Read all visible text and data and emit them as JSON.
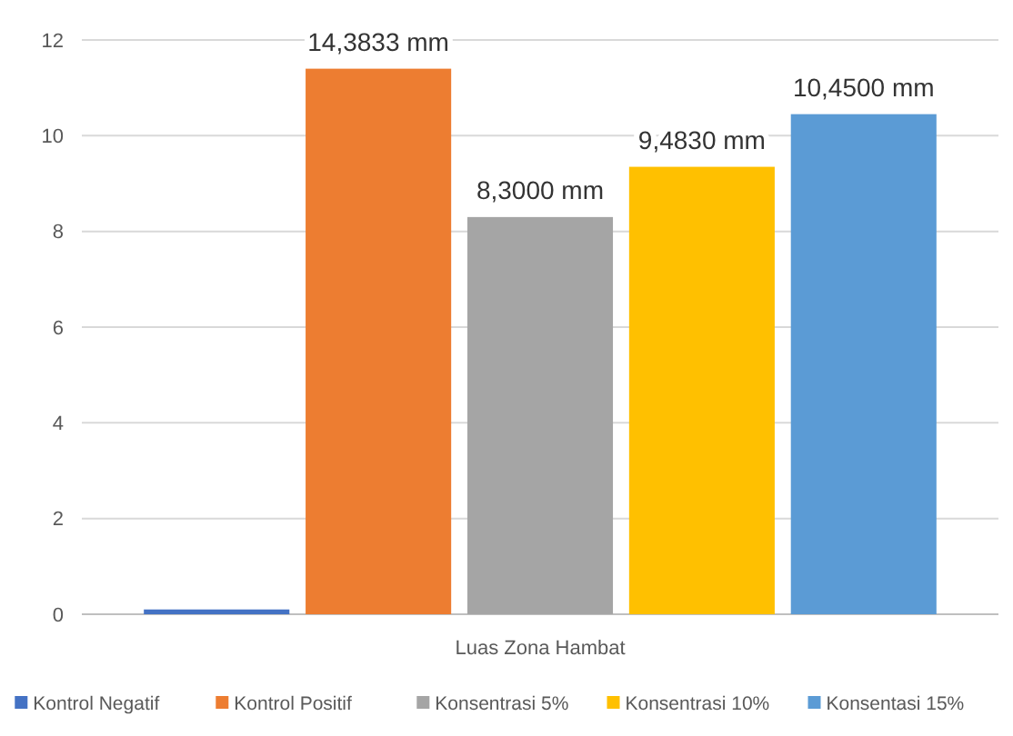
{
  "chart_data": {
    "type": "bar",
    "categories": [
      "Luas Zona Hambat"
    ],
    "series": [
      {
        "name": "Kontrol Negatif",
        "color": "#4472c4",
        "values": [
          0.1
        ],
        "value_labels": [
          null
        ]
      },
      {
        "name": "Kontrol Positif",
        "color": "#ed7d31",
        "values": [
          11.4
        ],
        "value_labels": [
          "14,3833 mm"
        ]
      },
      {
        "name": "Konsentrasi 5%",
        "color": "#a5a5a5",
        "values": [
          8.3
        ],
        "value_labels": [
          "8,3000 mm"
        ]
      },
      {
        "name": "Konsentrasi 10%",
        "color": "#ffc000",
        "values": [
          9.35
        ],
        "value_labels": [
          "9,4830 mm"
        ]
      },
      {
        "name": "Konsentasi 15%",
        "color": "#5b9bd5",
        "values": [
          10.45
        ],
        "value_labels": [
          "10,4500 mm"
        ]
      }
    ],
    "ylim": [
      0,
      12
    ],
    "yticks": [
      0,
      2,
      4,
      6,
      8,
      10,
      12
    ],
    "grid": "y",
    "legend": "bottom"
  }
}
